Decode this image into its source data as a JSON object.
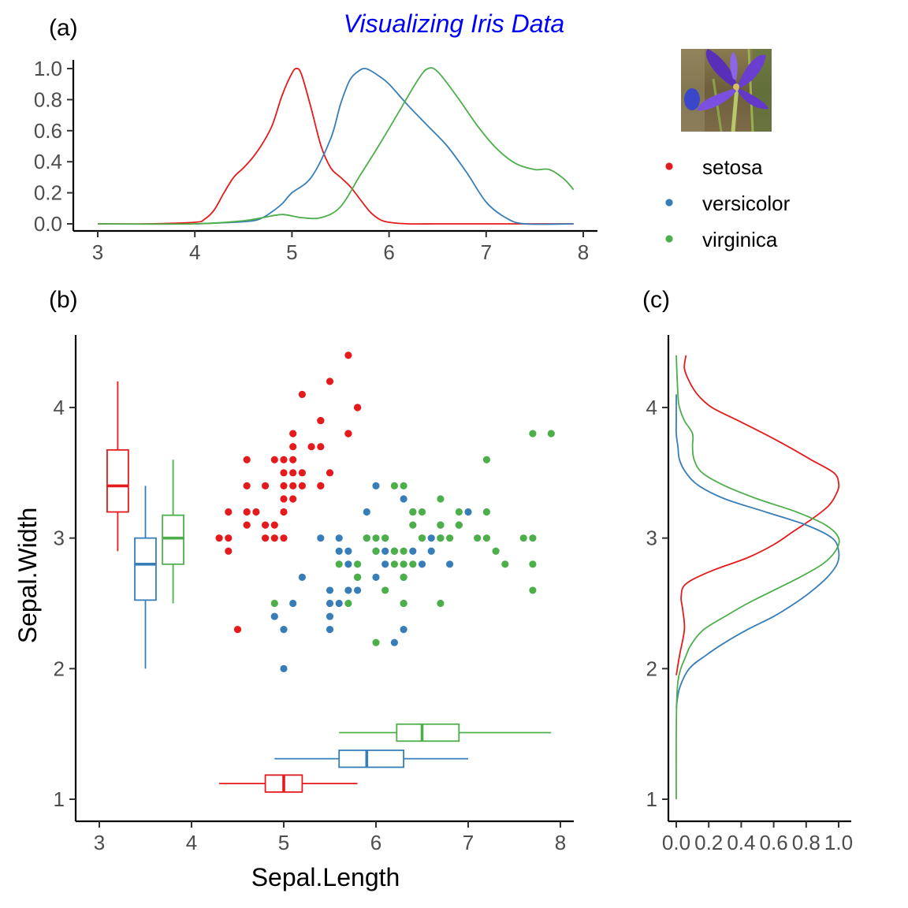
{
  "figure": {
    "title": "Visualizing Iris Data",
    "title_color": "#0000FF",
    "panel_labels": [
      "(a)",
      "(b)",
      "(c)"
    ]
  },
  "legend": {
    "position": "right of panel (a), below iris photo",
    "entries": [
      {
        "name": "setosa",
        "color": "#E41A1C"
      },
      {
        "name": "versicolor",
        "color": "#377EB8"
      },
      {
        "name": "virginica",
        "color": "#4DAF4A"
      }
    ]
  },
  "photo": {
    "icon": "iris-flower-photo"
  },
  "chart_data": [
    {
      "panel": "(a)",
      "type": "line",
      "description_scale": "density scaled to max = 1",
      "xlabel": "",
      "ylabel": "",
      "xlim": [
        2.9,
        8.1
      ],
      "ylim": [
        -0.04,
        1.04
      ],
      "xticks": [
        3,
        4,
        5,
        6,
        7,
        8
      ],
      "yticks": [
        0.0,
        0.2,
        0.4,
        0.6,
        0.8,
        1.0
      ],
      "ytick_labels": [
        "0.0",
        "0.2",
        "0.4",
        "0.6",
        "0.8",
        "1.0"
      ],
      "grid": false,
      "series": [
        {
          "name": "setosa",
          "color": "#E41A1C",
          "x": [
            3.0,
            3.5,
            4.0,
            4.1,
            4.2,
            4.3,
            4.4,
            4.5,
            4.6,
            4.7,
            4.8,
            4.9,
            5.0,
            5.05,
            5.1,
            5.2,
            5.3,
            5.4,
            5.5,
            5.6,
            5.7,
            5.8,
            5.9,
            6.0,
            6.2,
            6.5,
            7.0,
            7.9
          ],
          "y": [
            0.0,
            0.0,
            0.01,
            0.03,
            0.09,
            0.2,
            0.3,
            0.36,
            0.43,
            0.52,
            0.64,
            0.83,
            0.97,
            1.0,
            0.96,
            0.74,
            0.5,
            0.36,
            0.3,
            0.24,
            0.16,
            0.08,
            0.03,
            0.01,
            0.0,
            0.0,
            0.0,
            0.0
          ]
        },
        {
          "name": "versicolor",
          "color": "#377EB8",
          "x": [
            4.0,
            4.4,
            4.6,
            4.7,
            4.8,
            4.9,
            5.0,
            5.2,
            5.4,
            5.5,
            5.6,
            5.7,
            5.75,
            5.8,
            5.9,
            6.0,
            6.2,
            6.4,
            6.6,
            6.8,
            7.0,
            7.2,
            7.4,
            7.9
          ],
          "y": [
            0.0,
            0.01,
            0.02,
            0.04,
            0.08,
            0.13,
            0.2,
            0.3,
            0.55,
            0.77,
            0.93,
            0.99,
            1.0,
            0.99,
            0.95,
            0.9,
            0.76,
            0.63,
            0.5,
            0.33,
            0.14,
            0.04,
            0.0,
            0.0
          ]
        },
        {
          "name": "virginica",
          "color": "#4DAF4A",
          "x": [
            3.0,
            4.0,
            4.5,
            4.7,
            4.9,
            5.1,
            5.3,
            5.5,
            5.7,
            5.9,
            6.1,
            6.3,
            6.4,
            6.5,
            6.7,
            6.9,
            7.1,
            7.3,
            7.5,
            7.65,
            7.8,
            7.9
          ],
          "y": [
            0.0,
            0.0,
            0.02,
            0.04,
            0.06,
            0.04,
            0.04,
            0.11,
            0.31,
            0.51,
            0.72,
            0.93,
            1.0,
            0.98,
            0.82,
            0.64,
            0.49,
            0.39,
            0.35,
            0.35,
            0.29,
            0.22
          ]
        }
      ]
    },
    {
      "panel": "(b)",
      "type": "scatter",
      "xlabel": "Sepal.Length",
      "ylabel": "Sepal.Width",
      "xlim": [
        2.8,
        8.15
      ],
      "ylim": [
        0.85,
        4.55
      ],
      "xticks": [
        3,
        4,
        5,
        6,
        7,
        8
      ],
      "yticks": [
        1,
        2,
        3,
        4
      ],
      "grid": false,
      "series": [
        {
          "name": "setosa",
          "color": "#E41A1C",
          "points": [
            [
              5.7,
              4.4
            ],
            [
              5.2,
              4.1
            ],
            [
              5.5,
              4.2
            ],
            [
              5.8,
              4.0
            ],
            [
              5.4,
              3.9
            ],
            [
              5.7,
              3.8
            ],
            [
              5.1,
              3.8
            ],
            [
              5.4,
              3.7
            ],
            [
              5.3,
              3.7
            ],
            [
              5.0,
              3.6
            ],
            [
              4.6,
              3.6
            ],
            [
              4.9,
              3.6
            ],
            [
              5.1,
              3.7
            ],
            [
              5.4,
              3.4
            ],
            [
              5.7,
              3.8
            ],
            [
              5.0,
              3.5
            ],
            [
              5.1,
              3.5
            ],
            [
              5.2,
              3.5
            ],
            [
              5.5,
              3.5
            ],
            [
              4.6,
              3.4
            ],
            [
              4.8,
              3.4
            ],
            [
              5.0,
              3.4
            ],
            [
              5.1,
              3.4
            ],
            [
              5.2,
              3.4
            ],
            [
              5.4,
              3.4
            ],
            [
              5.0,
              3.3
            ],
            [
              5.1,
              3.3
            ],
            [
              4.6,
              3.2
            ],
            [
              4.4,
              3.2
            ],
            [
              4.7,
              3.2
            ],
            [
              5.0,
              3.2
            ],
            [
              4.9,
              3.1
            ],
            [
              4.8,
              3.1
            ],
            [
              4.6,
              3.1
            ],
            [
              5.0,
              3.0
            ],
            [
              4.4,
              3.0
            ],
            [
              4.3,
              3.0
            ],
            [
              4.8,
              3.0
            ],
            [
              4.9,
              3.0
            ],
            [
              4.4,
              2.9
            ],
            [
              4.5,
              2.3
            ],
            [
              5.4,
              3.9
            ],
            [
              5.1,
              3.6
            ],
            [
              5.8,
              4.0
            ]
          ]
        },
        {
          "name": "versicolor",
          "color": "#377EB8",
          "points": [
            [
              5.9,
              3.2
            ],
            [
              6.0,
              3.4
            ],
            [
              6.3,
              3.3
            ],
            [
              6.7,
              3.1
            ],
            [
              6.9,
              3.1
            ],
            [
              7.0,
              3.2
            ],
            [
              6.4,
              3.2
            ],
            [
              6.6,
              3.0
            ],
            [
              5.6,
              3.0
            ],
            [
              5.4,
              3.0
            ],
            [
              5.6,
              2.9
            ],
            [
              6.1,
              2.9
            ],
            [
              6.0,
              2.9
            ],
            [
              6.2,
              2.9
            ],
            [
              6.6,
              2.9
            ],
            [
              6.4,
              2.9
            ],
            [
              5.7,
              2.8
            ],
            [
              6.1,
              2.8
            ],
            [
              6.5,
              2.8
            ],
            [
              6.8,
              2.8
            ],
            [
              5.7,
              2.9
            ],
            [
              5.8,
              2.7
            ],
            [
              6.3,
              2.7
            ],
            [
              6.0,
              2.7
            ],
            [
              5.2,
              2.7
            ],
            [
              5.5,
              2.6
            ],
            [
              5.8,
              2.6
            ],
            [
              5.6,
              2.5
            ],
            [
              5.5,
              2.5
            ],
            [
              6.3,
              2.5
            ],
            [
              5.7,
              2.6
            ],
            [
              5.1,
              2.5
            ],
            [
              4.9,
              2.4
            ],
            [
              5.5,
              2.4
            ],
            [
              5.0,
              2.3
            ],
            [
              5.5,
              2.3
            ],
            [
              6.3,
              2.3
            ],
            [
              6.2,
              2.2
            ],
            [
              5.0,
              2.0
            ],
            [
              6.7,
              3.0
            ],
            [
              6.1,
              3.0
            ],
            [
              5.9,
              3.0
            ]
          ]
        },
        {
          "name": "virginica",
          "color": "#4DAF4A",
          "points": [
            [
              7.9,
              3.8
            ],
            [
              7.7,
              3.8
            ],
            [
              7.2,
              3.6
            ],
            [
              6.2,
              3.4
            ],
            [
              6.3,
              3.4
            ],
            [
              6.4,
              3.2
            ],
            [
              6.5,
              3.2
            ],
            [
              6.7,
              3.3
            ],
            [
              6.9,
              3.2
            ],
            [
              7.2,
              3.2
            ],
            [
              6.4,
              3.1
            ],
            [
              6.7,
              3.1
            ],
            [
              6.9,
              3.1
            ],
            [
              6.5,
              3.0
            ],
            [
              6.8,
              3.0
            ],
            [
              6.7,
              3.0
            ],
            [
              7.1,
              3.0
            ],
            [
              7.2,
              3.0
            ],
            [
              7.6,
              3.0
            ],
            [
              7.7,
              3.0
            ],
            [
              6.1,
              3.0
            ],
            [
              5.9,
              3.0
            ],
            [
              6.0,
              3.0
            ],
            [
              6.3,
              2.9
            ],
            [
              6.4,
              2.8
            ],
            [
              6.3,
              2.8
            ],
            [
              6.2,
              2.8
            ],
            [
              5.8,
              2.8
            ],
            [
              7.4,
              2.8
            ],
            [
              7.7,
              2.8
            ],
            [
              5.6,
              2.8
            ],
            [
              7.3,
              2.9
            ],
            [
              6.3,
              2.7
            ],
            [
              5.8,
              2.7
            ],
            [
              6.0,
              2.2
            ],
            [
              6.7,
              2.5
            ],
            [
              6.3,
              2.5
            ],
            [
              5.7,
              2.5
            ],
            [
              4.9,
              2.5
            ],
            [
              7.7,
              2.6
            ],
            [
              6.1,
              2.6
            ],
            [
              6.0,
              2.9
            ],
            [
              6.2,
              2.9
            ],
            [
              5.8,
              2.7
            ],
            [
              6.5,
              3.0
            ]
          ]
        }
      ],
      "boxplots_y": [
        {
          "name": "setosa",
          "color": "#E41A1C",
          "whisker_low": 2.9,
          "q1": 3.2,
          "median": 3.4,
          "q3": 3.675,
          "whisker_high": 4.2
        },
        {
          "name": "versicolor",
          "color": "#377EB8",
          "whisker_low": 2.0,
          "q1": 2.525,
          "median": 2.8,
          "q3": 3.0,
          "whisker_high": 3.4
        },
        {
          "name": "virginica",
          "color": "#4DAF4A",
          "whisker_low": 2.5,
          "q1": 2.8,
          "median": 3.0,
          "q3": 3.175,
          "whisker_high": 3.6
        }
      ],
      "boxplots_x": [
        {
          "name": "setosa",
          "color": "#E41A1C",
          "whisker_low": 4.3,
          "q1": 4.8,
          "median": 5.0,
          "q3": 5.2,
          "whisker_high": 5.8
        },
        {
          "name": "versicolor",
          "color": "#377EB8",
          "whisker_low": 4.9,
          "q1": 5.6,
          "median": 5.9,
          "q3": 6.3,
          "whisker_high": 7.0
        },
        {
          "name": "virginica",
          "color": "#4DAF4A",
          "whisker_low": 5.6,
          "q1": 6.225,
          "median": 6.5,
          "q3": 6.9,
          "whisker_high": 7.9
        }
      ]
    },
    {
      "panel": "(c)",
      "type": "line",
      "description_scale": "density of Sepal.Width scaled to max = 1, plotted horizontally",
      "xlabel": "",
      "ylabel": "",
      "xlim": [
        -0.02,
        1.02
      ],
      "ylim": [
        0.85,
        4.55
      ],
      "xticks": [
        0.0,
        0.2,
        0.4,
        0.6,
        0.8,
        1.0
      ],
      "xtick_labels": [
        "0.0",
        "0.2",
        "0.4",
        "0.6",
        "0.8",
        "1.0"
      ],
      "yticks": [
        1,
        2,
        3,
        4
      ],
      "grid": false,
      "series": [
        {
          "name": "setosa",
          "color": "#E41A1C",
          "y": [
            1.95,
            2.1,
            2.3,
            2.45,
            2.55,
            2.65,
            2.75,
            2.85,
            2.95,
            3.05,
            3.15,
            3.25,
            3.35,
            3.42,
            3.5,
            3.6,
            3.7,
            3.8,
            3.9,
            4.0,
            4.1,
            4.2,
            4.3,
            4.4
          ],
          "x": [
            0.0,
            0.02,
            0.05,
            0.04,
            0.03,
            0.06,
            0.22,
            0.44,
            0.6,
            0.72,
            0.84,
            0.94,
            0.99,
            1.0,
            0.97,
            0.83,
            0.69,
            0.54,
            0.38,
            0.22,
            0.13,
            0.08,
            0.05,
            0.06
          ]
        },
        {
          "name": "versicolor",
          "color": "#377EB8",
          "y": [
            1.7,
            1.85,
            2.0,
            2.1,
            2.2,
            2.3,
            2.4,
            2.5,
            2.6,
            2.7,
            2.8,
            2.9,
            3.0,
            3.1,
            3.2,
            3.3,
            3.4,
            3.5,
            3.6,
            3.7,
            3.8,
            3.9,
            4.0,
            4.1
          ],
          "x": [
            0.0,
            0.02,
            0.08,
            0.18,
            0.3,
            0.44,
            0.6,
            0.73,
            0.84,
            0.93,
            0.99,
            1.0,
            0.96,
            0.8,
            0.55,
            0.3,
            0.14,
            0.06,
            0.02,
            0.01,
            0.0,
            0.0,
            0.0,
            0.0
          ]
        },
        {
          "name": "virginica",
          "color": "#4DAF4A",
          "y": [
            1.0,
            1.5,
            1.9,
            2.1,
            2.2,
            2.3,
            2.4,
            2.5,
            2.6,
            2.7,
            2.8,
            2.9,
            3.0,
            3.1,
            3.2,
            3.3,
            3.4,
            3.5,
            3.6,
            3.7,
            3.8,
            3.9,
            4.0,
            4.1,
            4.4
          ],
          "x": [
            0.0,
            0.0,
            0.01,
            0.06,
            0.1,
            0.17,
            0.3,
            0.44,
            0.6,
            0.76,
            0.9,
            0.98,
            1.0,
            0.92,
            0.74,
            0.5,
            0.3,
            0.16,
            0.11,
            0.1,
            0.1,
            0.05,
            0.02,
            0.01,
            0.0
          ]
        }
      ]
    }
  ]
}
